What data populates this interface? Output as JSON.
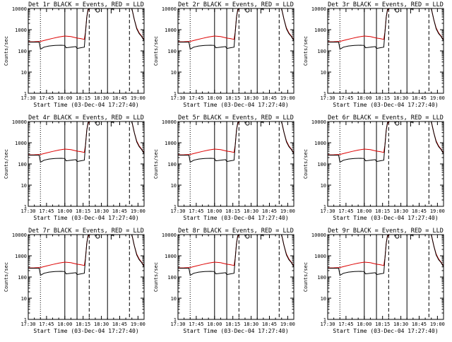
{
  "colors": {
    "events": "#000000",
    "lld": "#dd0000",
    "background": "#ffffff",
    "axes": "#000000"
  },
  "chart_data": [
    {
      "type": "line",
      "title": "Det 1r BLACK = Events, RED = LLD",
      "xlabel": "Start Time (03-Dec-04 17:27:40)",
      "ylabel": "Counts/sec"
    },
    {
      "type": "line",
      "title": "Det 2r BLACK = Events, RED = LLD",
      "xlabel": "Start Time (03-Dec-04 17:27:40)",
      "ylabel": "Counts/sec"
    },
    {
      "type": "line",
      "title": "Det 3r BLACK = Events, RED = LLD",
      "xlabel": "Start Time (03-Dec-04 17:27:40)",
      "ylabel": "Counts/sec"
    },
    {
      "type": "line",
      "title": "Det 4r BLACK = Events, RED = LLD",
      "xlabel": "Start Time (03-Dec-04 17:27:40)",
      "ylabel": "Counts/sec"
    },
    {
      "type": "line",
      "title": "Det 5r BLACK = Events, RED = LLD",
      "xlabel": "Start Time (03-Dec-04 17:27:40)",
      "ylabel": "Counts/sec"
    },
    {
      "type": "line",
      "title": "Det 6r BLACK = Events, RED = LLD",
      "xlabel": "Start Time (03-Dec-04 17:27:40)",
      "ylabel": "Counts/sec"
    },
    {
      "type": "line",
      "title": "Det 7r BLACK = Events, RED = LLD",
      "xlabel": "Start Time (03-Dec-04 17:27:40)",
      "ylabel": "Counts/sec"
    },
    {
      "type": "line",
      "title": "Det 8r BLACK = Events, RED = LLD",
      "xlabel": "Start Time (03-Dec-04 17:27:40)",
      "ylabel": "Counts/sec"
    },
    {
      "type": "line",
      "title": "Det 9r BLACK = Events, RED = LLD",
      "xlabel": "Start Time (03-Dec-04 17:27:40)",
      "ylabel": "Counts/sec"
    }
  ],
  "shared": {
    "y_scale": "log",
    "ylim": [
      1,
      10000
    ],
    "y_ticks": [
      1,
      10,
      100,
      1000,
      10000
    ],
    "y_tick_labels": [
      "1",
      "10",
      "100",
      "1000",
      "10000"
    ],
    "xlim": [
      "17:30",
      "19:05"
    ],
    "x_ticks": [
      "17:30",
      "17:45",
      "18:00",
      "18:15",
      "18:30",
      "18:45",
      "19:00"
    ],
    "x_tick_labels": [
      "17:30",
      "17:45",
      "18:00",
      "18:15",
      "18:30",
      "18:45",
      "19:00"
    ],
    "vlines": [
      {
        "x": "17:40",
        "style": "dotted"
      },
      {
        "x": "18:00",
        "style": "solid"
      },
      {
        "x": "18:10",
        "style": "solid"
      },
      {
        "x": "18:20",
        "style": "dashed"
      },
      {
        "x": "18:35",
        "style": "solid"
      },
      {
        "x": "18:53",
        "style": "dashed"
      }
    ],
    "series": [
      {
        "name": "LLD",
        "color": "#dd0000",
        "points": [
          [
            "17:30",
            270
          ],
          [
            "17:35",
            272
          ],
          [
            "17:40",
            280
          ],
          [
            "17:45",
            330
          ],
          [
            "17:50",
            390
          ],
          [
            "17:55",
            450
          ],
          [
            "18:00",
            500
          ],
          [
            "18:05",
            470
          ],
          [
            "18:10",
            400
          ],
          [
            "18:13",
            380
          ],
          [
            "18:16",
            350
          ],
          [
            "18:17",
            800
          ],
          [
            "18:18",
            4000
          ],
          [
            "18:19",
            8000
          ],
          [
            "18:20",
            9500
          ],
          [
            "18:21",
            10000
          ],
          [
            "18:55",
            10000
          ],
          [
            "18:57",
            3000
          ],
          [
            "18:59",
            1200
          ],
          [
            "19:01",
            700
          ],
          [
            "19:03",
            500
          ],
          [
            "19:05",
            330
          ]
        ]
      },
      {
        "name": "Events",
        "color": "#000000",
        "points": [
          [
            "17:30",
            260
          ],
          [
            "17:35",
            260
          ],
          [
            "17:39",
            260
          ],
          [
            "17:40",
            120
          ],
          [
            "17:43",
            150
          ],
          [
            "17:47",
            170
          ],
          [
            "17:52",
            180
          ],
          [
            "17:57",
            185
          ],
          [
            "18:00",
            180
          ],
          [
            "18:01",
            140
          ],
          [
            "18:05",
            150
          ],
          [
            "18:09",
            160
          ],
          [
            "18:10",
            130
          ],
          [
            "18:13",
            140
          ],
          [
            "18:16",
            150
          ],
          [
            "18:17",
            800
          ],
          [
            "18:18",
            4000
          ],
          [
            "18:19",
            9000
          ],
          [
            "18:20",
            10000
          ],
          [
            "18:55",
            10000
          ],
          [
            "18:57",
            3000
          ],
          [
            "18:59",
            1100
          ],
          [
            "19:01",
            650
          ],
          [
            "19:03",
            480
          ],
          [
            "19:05",
            300
          ]
        ]
      }
    ],
    "markers": [
      {
        "type": "circle",
        "x": "18:27",
        "y": 9500
      },
      {
        "type": "bracket",
        "x": "18:38",
        "y": 10000
      }
    ]
  }
}
